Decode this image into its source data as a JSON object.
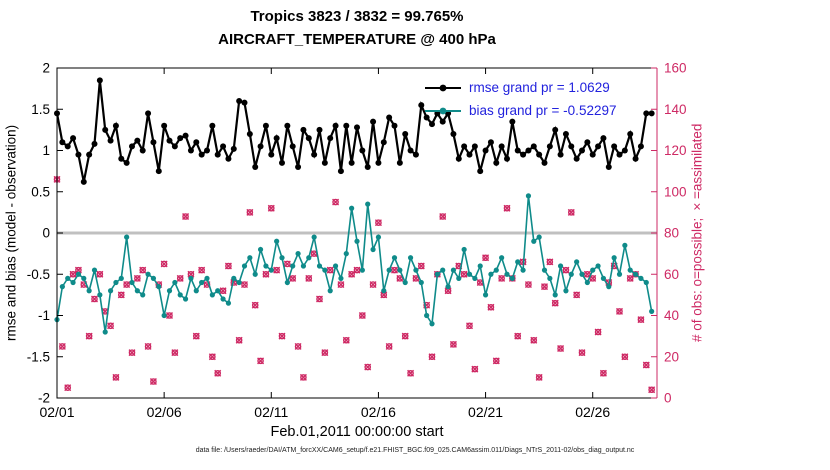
{
  "chart_data": {
    "type": "line",
    "title": "Tropics 3823 / 3832 = 99.765%",
    "subtitle": "AIRCRAFT_TEMPERATURE @ 400 hPa",
    "xlabel": "Feb.01,2011 00:00:00 start",
    "ylabel_left": "rmse and bias (model - observation)",
    "ylabel_right": "# of obs: o=possible; ×=assimilated",
    "ylim_left": [
      -2,
      2
    ],
    "ylim_right": [
      0,
      160
    ],
    "y_ticks_left": [
      "2",
      "1.5",
      "1",
      "0.5",
      "0",
      "-0.5",
      "-1",
      "-1.5",
      "-2"
    ],
    "y_ticks_right": [
      "0",
      "20",
      "40",
      "60",
      "80",
      "100",
      "120",
      "140",
      "160"
    ],
    "x_ticks": [
      {
        "day": 0,
        "label": "02/01"
      },
      {
        "day": 5,
        "label": "02/06"
      },
      {
        "day": 10,
        "label": "02/11"
      },
      {
        "day": 15,
        "label": "02/16"
      },
      {
        "day": 20,
        "label": "02/21"
      },
      {
        "day": 25,
        "label": "02/26"
      }
    ],
    "x_range_days": [
      0,
      28
    ],
    "sample_interval_days": 0.25,
    "grid": "off",
    "zero_reference_line": 0,
    "legend_position": "top-right-inside",
    "legend": [
      {
        "label": "rmse grand pr = 1.0629",
        "series": "rmse",
        "color": "#000000"
      },
      {
        "label": "bias grand pr = -0.52297",
        "series": "bias",
        "color": "#0f8b8a"
      }
    ],
    "colors": {
      "rmse": "#000000",
      "bias": "#0f8b8a",
      "obs": "#ce2964",
      "legend_text": "#2222dd",
      "zero_line": "#c0c0c0",
      "axis": "#000000"
    },
    "series": {
      "rmse": {
        "axis": "left",
        "values": [
          1.45,
          1.1,
          1.05,
          1.15,
          0.95,
          0.62,
          0.95,
          1.08,
          1.85,
          1.25,
          1.12,
          1.3,
          0.9,
          0.85,
          1.05,
          1.12,
          1.0,
          1.45,
          1.1,
          0.75,
          1.3,
          1.12,
          1.05,
          1.15,
          1.18,
          1.0,
          1.1,
          0.95,
          1.0,
          1.3,
          0.95,
          1.05,
          0.9,
          1.02,
          1.6,
          1.58,
          1.2,
          0.8,
          1.05,
          1.3,
          0.95,
          1.15,
          0.85,
          1.3,
          1.05,
          0.8,
          1.25,
          1.15,
          0.95,
          1.25,
          0.85,
          1.15,
          1.3,
          0.75,
          1.3,
          0.85,
          1.28,
          1.0,
          0.8,
          1.35,
          0.85,
          1.1,
          1.4,
          1.3,
          0.85,
          1.2,
          1.0,
          0.95,
          1.55,
          1.4,
          1.32,
          1.45,
          1.35,
          1.45,
          1.2,
          0.9,
          1.05,
          0.95,
          1.05,
          0.75,
          1.0,
          1.1,
          0.85,
          1.05,
          0.9,
          1.35,
          1.0,
          0.95,
          1.0,
          1.05,
          0.95,
          0.85,
          1.05,
          1.25,
          0.95,
          1.2,
          1.05,
          0.9,
          1.0,
          1.1,
          0.95,
          1.05,
          1.15,
          0.8,
          1.05,
          0.95,
          1.0,
          1.2,
          0.9,
          1.05,
          1.45,
          1.45
        ]
      },
      "bias": {
        "axis": "left",
        "values": [
          -1.05,
          -0.65,
          -0.55,
          -0.6,
          -0.5,
          -0.55,
          -0.7,
          -0.45,
          -0.75,
          -1.2,
          -0.7,
          -0.6,
          -0.55,
          -0.05,
          -0.6,
          -0.7,
          -0.75,
          -0.5,
          -0.55,
          -0.65,
          -1.0,
          -0.7,
          -0.6,
          -0.75,
          -0.8,
          -0.55,
          -0.7,
          -0.6,
          -0.55,
          -0.75,
          -0.7,
          -0.8,
          -0.85,
          -0.55,
          -0.6,
          -0.4,
          -0.3,
          -0.5,
          -0.2,
          -0.4,
          -0.45,
          -0.1,
          -0.3,
          -0.6,
          -0.4,
          -0.25,
          -0.4,
          -0.3,
          -0.05,
          -0.4,
          -0.45,
          -0.7,
          -0.4,
          -0.55,
          -0.25,
          0.3,
          -0.1,
          -0.45,
          0.35,
          -0.2,
          -0.05,
          -0.7,
          -0.45,
          -0.3,
          -0.45,
          -0.6,
          -0.3,
          -0.45,
          -0.6,
          -1.0,
          -1.1,
          -0.5,
          -0.45,
          -0.65,
          -0.45,
          -0.55,
          -0.2,
          -0.5,
          -0.55,
          -0.4,
          -0.75,
          -0.5,
          -0.45,
          -0.3,
          -0.5,
          -0.55,
          -0.35,
          -0.45,
          0.45,
          -0.1,
          -0.05,
          -0.45,
          -0.55,
          -0.75,
          -0.4,
          -0.7,
          -0.5,
          -0.35,
          -0.5,
          -0.6,
          -0.45,
          -0.4,
          -0.55,
          -0.65,
          -0.3,
          -0.5,
          -0.15,
          -0.45,
          -0.5,
          -0.55,
          -0.6,
          -0.95
        ]
      },
      "obs_counts": {
        "axis": "right",
        "markers": [
          "o",
          "x"
        ],
        "note": "o=possible and ×=assimilated plotted at same points (99.765% assimilated)",
        "values": [
          106,
          25,
          5,
          60,
          62,
          55,
          30,
          48,
          60,
          42,
          35,
          10,
          50,
          55,
          22,
          58,
          62,
          25,
          8,
          55,
          65,
          40,
          22,
          58,
          88,
          60,
          30,
          62,
          55,
          20,
          12,
          52,
          64,
          56,
          28,
          55,
          90,
          45,
          18,
          60,
          92,
          62,
          30,
          65,
          58,
          25,
          10,
          58,
          70,
          48,
          22,
          62,
          95,
          55,
          28,
          60,
          62,
          40,
          15,
          55,
          85,
          50,
          25,
          62,
          58,
          30,
          12,
          58,
          64,
          45,
          20,
          60,
          88,
          52,
          26,
          64,
          60,
          35,
          14,
          56,
          68,
          44,
          18,
          58,
          92,
          58,
          30,
          66,
          55,
          28,
          10,
          54,
          66,
          46,
          24,
          62,
          90,
          50,
          22,
          60,
          58,
          32,
          12,
          56,
          64,
          42,
          20,
          58,
          60,
          38,
          16,
          4
        ]
      }
    }
  },
  "footer": {
    "text": "data file: /Users/raeder/DAI/ATM_forcXX/CAM6_setup/f.e21.FHIST_BGC.f09_025.CAM6assim.011/Diags_NTrS_2011-02/obs_diag_output.nc"
  }
}
